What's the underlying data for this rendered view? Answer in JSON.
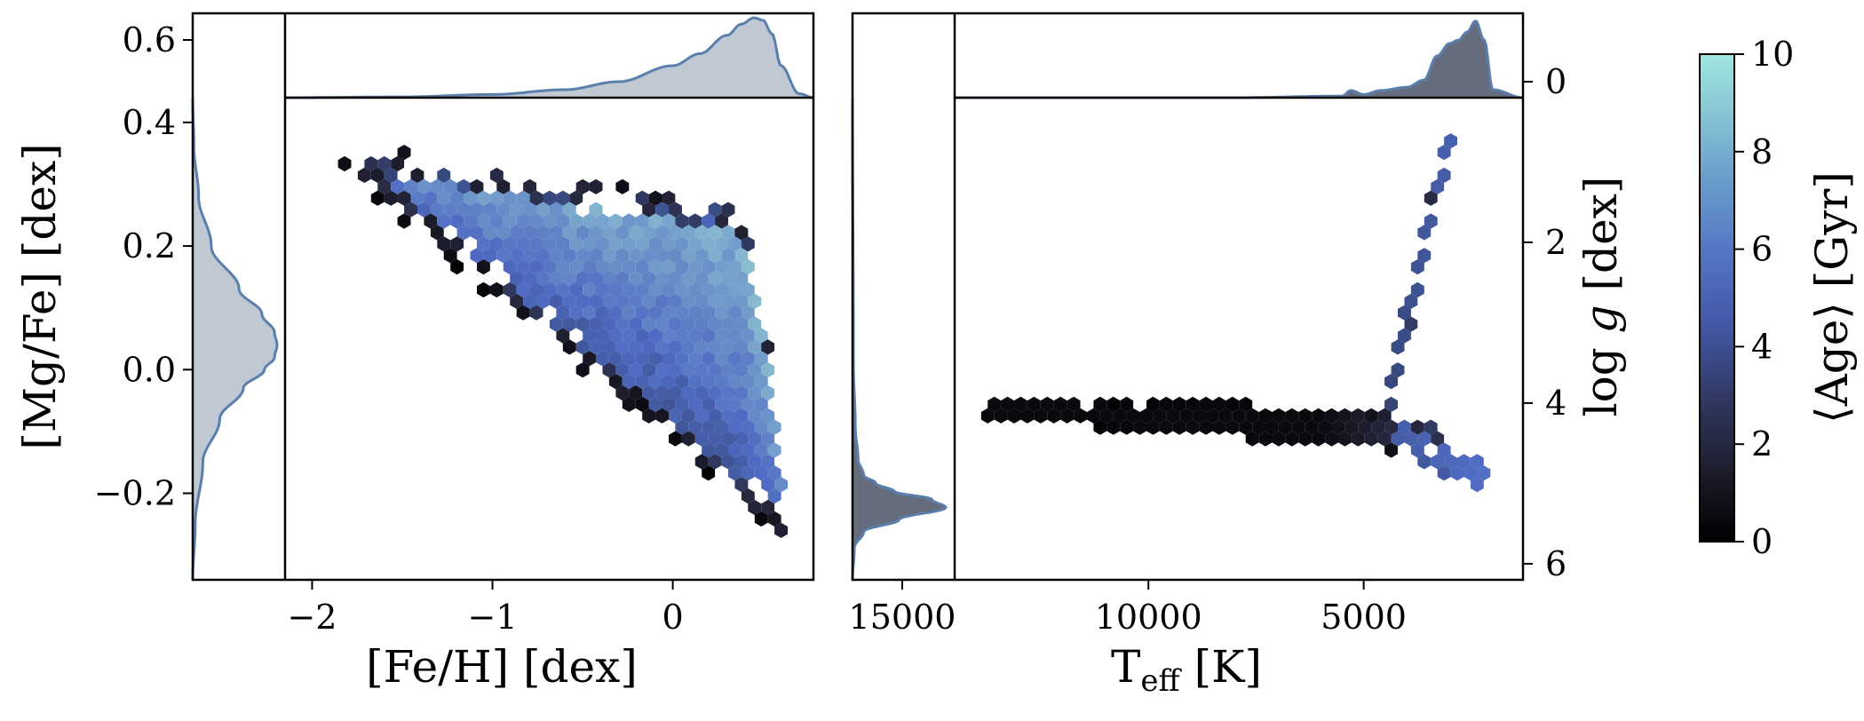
{
  "colors": {
    "background": "#ffffff",
    "axis": "#000000",
    "marginal_line": "#5b7fad",
    "marginal_fill": "#8d9ab0",
    "colormap": [
      "#000000",
      "#26273c",
      "#3a4d86",
      "#4f6bc3",
      "#6b93c9",
      "#88bccf",
      "#a2e6e2"
    ]
  },
  "chart_data": [
    {
      "type": "hexbin",
      "panel": "left",
      "xlabel": "[Fe/H] [dex]",
      "ylabel": "[Mg/Fe] [dex]",
      "xlim": [
        -2.15,
        0.78
      ],
      "ylim": [
        -0.34,
        0.44
      ],
      "xticks": [
        -2,
        -1,
        0
      ],
      "xtick_labels": [
        "−2",
        "−1",
        "0"
      ],
      "yticks": [
        -0.2,
        0.0,
        0.2,
        0.4
      ],
      "ytick_labels": [
        "−0.2",
        "0.0",
        "0.2",
        "0.4"
      ],
      "marginal_x": {
        "type": "area",
        "x": [
          -2.15,
          -1.5,
          -1.0,
          -0.6,
          -0.3,
          0.0,
          0.15,
          0.3,
          0.38,
          0.45,
          0.5,
          0.55,
          0.6,
          0.7,
          0.78
        ],
        "density": [
          0.0,
          0.01,
          0.04,
          0.1,
          0.2,
          0.4,
          0.55,
          0.78,
          0.92,
          1.0,
          0.97,
          0.8,
          0.4,
          0.05,
          0.0
        ]
      },
      "marginal_y": {
        "type": "area",
        "y": [
          -0.34,
          -0.25,
          -0.15,
          -0.08,
          -0.03,
          0.0,
          0.02,
          0.04,
          0.06,
          0.09,
          0.13,
          0.2,
          0.28,
          0.36,
          0.44
        ],
        "density": [
          0.0,
          0.03,
          0.12,
          0.32,
          0.6,
          0.85,
          0.97,
          1.0,
          0.97,
          0.82,
          0.55,
          0.22,
          0.07,
          0.015,
          0.0
        ]
      },
      "marginal_y_ticks": [
        0.6
      ],
      "marginal_y_tick_labels": [
        "0.6"
      ]
    },
    {
      "type": "hexbin",
      "panel": "right",
      "xlabel": "T_eff [K]",
      "ylabel": "log g [dex]",
      "xlim": [
        14500,
        1300
      ],
      "ylim": [
        6.2,
        0.2
      ],
      "x_inverted": true,
      "y_inverted": true,
      "xticks": [
        10000,
        5000
      ],
      "xtick_labels": [
        "10000",
        "5000"
      ],
      "yticks": [
        2,
        4,
        6
      ],
      "ytick_labels": [
        "2",
        "4",
        "6"
      ],
      "marginal_x": {
        "type": "area",
        "x": [
          14500,
          8000,
          5500,
          5300,
          5000,
          4600,
          4000,
          3600,
          3300,
          3000,
          2800,
          2600,
          2400,
          2200,
          2000,
          1300
        ],
        "density": [
          0.0,
          0.0,
          0.02,
          0.09,
          0.04,
          0.09,
          0.13,
          0.22,
          0.52,
          0.68,
          0.72,
          0.82,
          0.96,
          0.72,
          0.1,
          0.0
        ]
      },
      "marginal_x_ticks": [
        0
      ],
      "marginal_x_tick_labels": [
        "0"
      ],
      "marginal_y": {
        "type": "area",
        "y": [
          0.2,
          3.5,
          4.3,
          4.7,
          4.9,
          5.0,
          5.1,
          5.2,
          5.3,
          5.45,
          5.6,
          5.8,
          6.2
        ],
        "density": [
          0.0,
          0.01,
          0.03,
          0.06,
          0.12,
          0.25,
          0.45,
          0.85,
          1.0,
          0.5,
          0.12,
          0.02,
          0.0
        ]
      },
      "marginal_y_ticks": [
        15000
      ],
      "marginal_y_tick_labels": [
        "15000"
      ]
    }
  ],
  "colorbar": {
    "label": "⟨Age⟩ [Gyr]",
    "range": [
      0,
      10
    ],
    "ticks": [
      0,
      2,
      4,
      6,
      8,
      10
    ],
    "tick_labels": [
      "0",
      "2",
      "4",
      "6",
      "8",
      "10"
    ]
  }
}
